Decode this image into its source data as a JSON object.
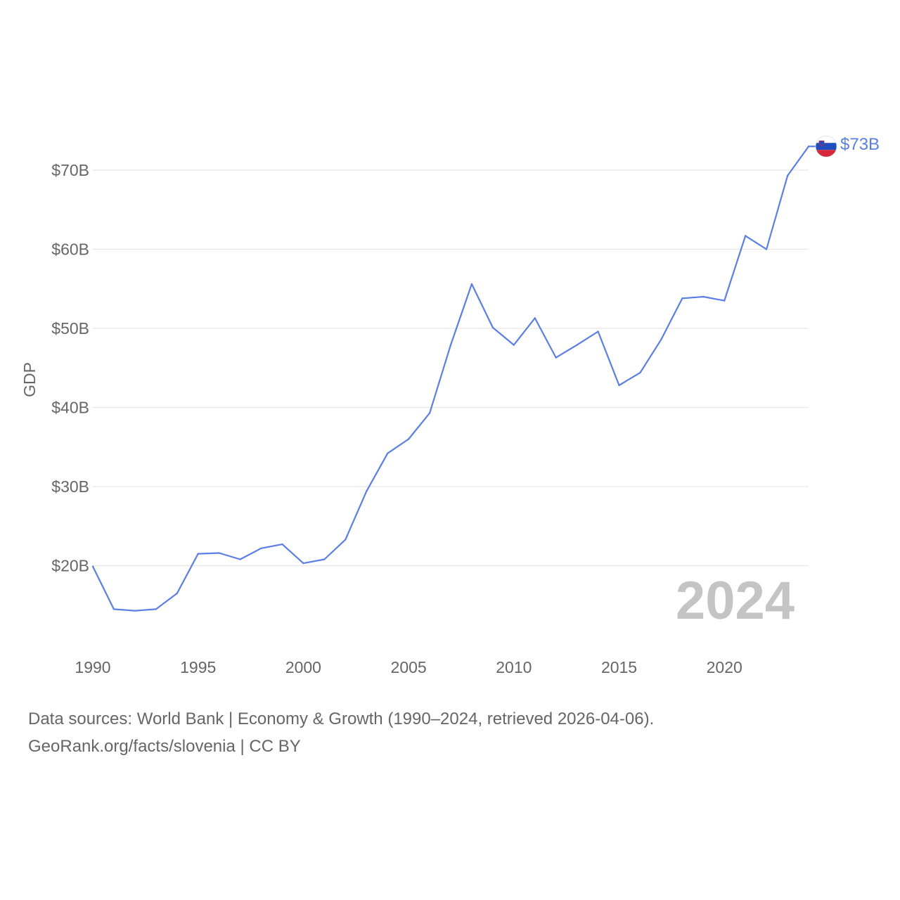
{
  "chart_data": {
    "type": "line",
    "country": "Slovenia",
    "ylabel": "GDP",
    "xlabel": "",
    "xlim": [
      1990,
      2024
    ],
    "ylim": [
      10,
      75
    ],
    "y_ticks": [
      {
        "value": 20,
        "label": "$20B"
      },
      {
        "value": 30,
        "label": "$30B"
      },
      {
        "value": 40,
        "label": "$40B"
      },
      {
        "value": 50,
        "label": "$50B"
      },
      {
        "value": 60,
        "label": "$60B"
      },
      {
        "value": 70,
        "label": "$70B"
      }
    ],
    "x_ticks": [
      {
        "value": 1990,
        "label": "1990"
      },
      {
        "value": 1995,
        "label": "1995"
      },
      {
        "value": 2000,
        "label": "2000"
      },
      {
        "value": 2005,
        "label": "2005"
      },
      {
        "value": 2010,
        "label": "2010"
      },
      {
        "value": 2015,
        "label": "2015"
      },
      {
        "value": 2020,
        "label": "2020"
      }
    ],
    "grid": true,
    "current_year": "2024",
    "end_label": "$73B",
    "series": [
      {
        "name": "Slovenia GDP (US$ billions)",
        "color": "#5b7fe3",
        "x": [
          1990,
          1991,
          1992,
          1993,
          1994,
          1995,
          1996,
          1997,
          1998,
          1999,
          2000,
          2001,
          2002,
          2003,
          2004,
          2005,
          2006,
          2007,
          2008,
          2009,
          2010,
          2011,
          2012,
          2013,
          2014,
          2015,
          2016,
          2017,
          2018,
          2019,
          2020,
          2021,
          2022,
          2023,
          2024
        ],
        "values": [
          19.9,
          14.5,
          14.3,
          14.5,
          16.5,
          21.5,
          21.6,
          20.8,
          22.2,
          22.7,
          20.3,
          20.8,
          23.3,
          29.4,
          34.2,
          36.0,
          39.3,
          47.9,
          55.6,
          50.1,
          47.9,
          51.3,
          46.3,
          47.9,
          49.6,
          42.8,
          44.4,
          48.6,
          53.8,
          54.0,
          53.5,
          61.7,
          60.0,
          69.3,
          73.0
        ]
      }
    ],
    "flag_colors": {
      "white": "#ffffff",
      "blue": "#1f4fbf",
      "red": "#d8263a"
    }
  },
  "footer": {
    "line1": "Data sources: World Bank | Economy & Growth (1990–2024, retrieved 2026-04-06).",
    "line2": "GeoRank.org/facts/slovenia | CC BY"
  }
}
